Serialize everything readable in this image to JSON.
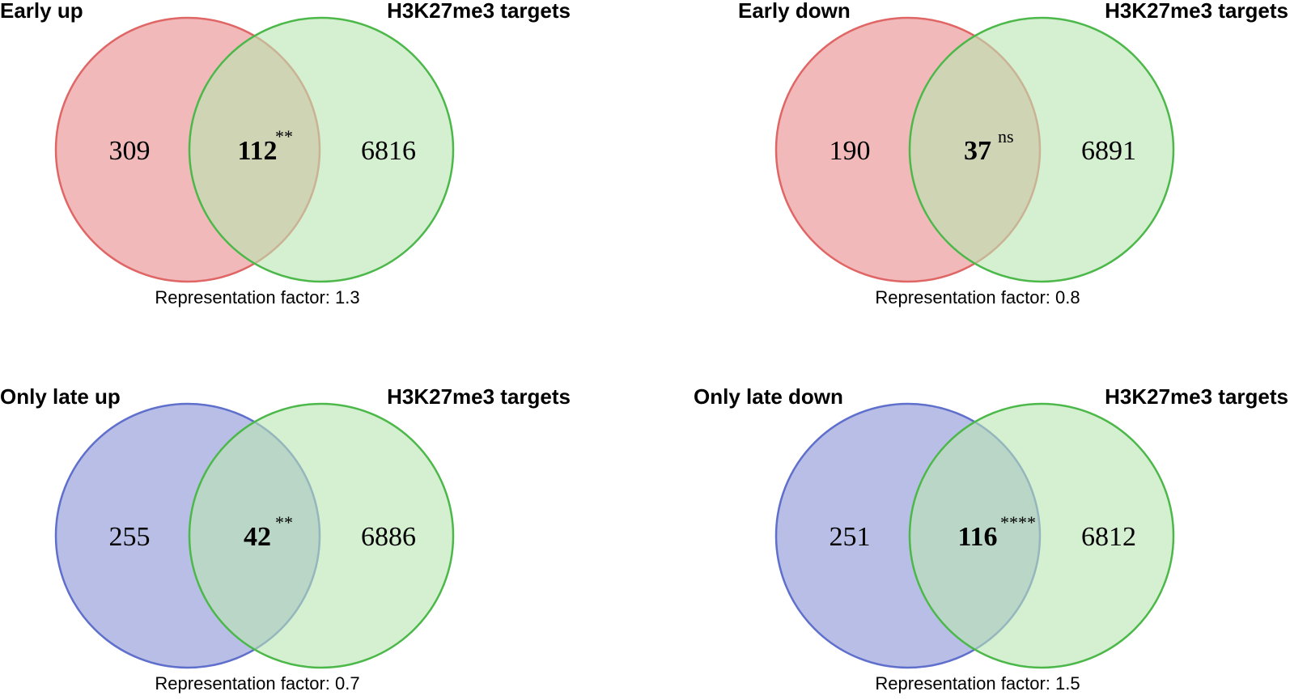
{
  "colors": {
    "red_fill": "#e88a8a",
    "red_stroke": "#e06666",
    "blue_fill": "#8893d4",
    "blue_stroke": "#5f6fcc",
    "green_fill": "#b9e6b3",
    "green_stroke": "#4cb84a"
  },
  "panels": [
    {
      "left_label": "Early up",
      "right_label": "H3K27me3 targets",
      "left_only": "309",
      "overlap": "112",
      "significance": "**",
      "right_only": "6816",
      "representation": "Representation factor: 1.3",
      "left_color": "red"
    },
    {
      "left_label": "Early down",
      "right_label": "H3K27me3 targets",
      "left_only": "190",
      "overlap": "37",
      "significance": "ns",
      "right_only": "6891",
      "representation": "Representation factor: 0.8",
      "left_color": "red"
    },
    {
      "left_label": "Only late up",
      "right_label": "H3K27me3 targets",
      "left_only": "255",
      "overlap": "42",
      "significance": "**",
      "right_only": "6886",
      "representation": "Representation factor: 0.7",
      "left_color": "blue"
    },
    {
      "left_label": "Only late down",
      "right_label": "H3K27me3 targets",
      "left_only": "251",
      "overlap": "116",
      "significance": "****",
      "right_only": "6812",
      "representation": "Representation factor: 1.5",
      "left_color": "blue"
    }
  ]
}
